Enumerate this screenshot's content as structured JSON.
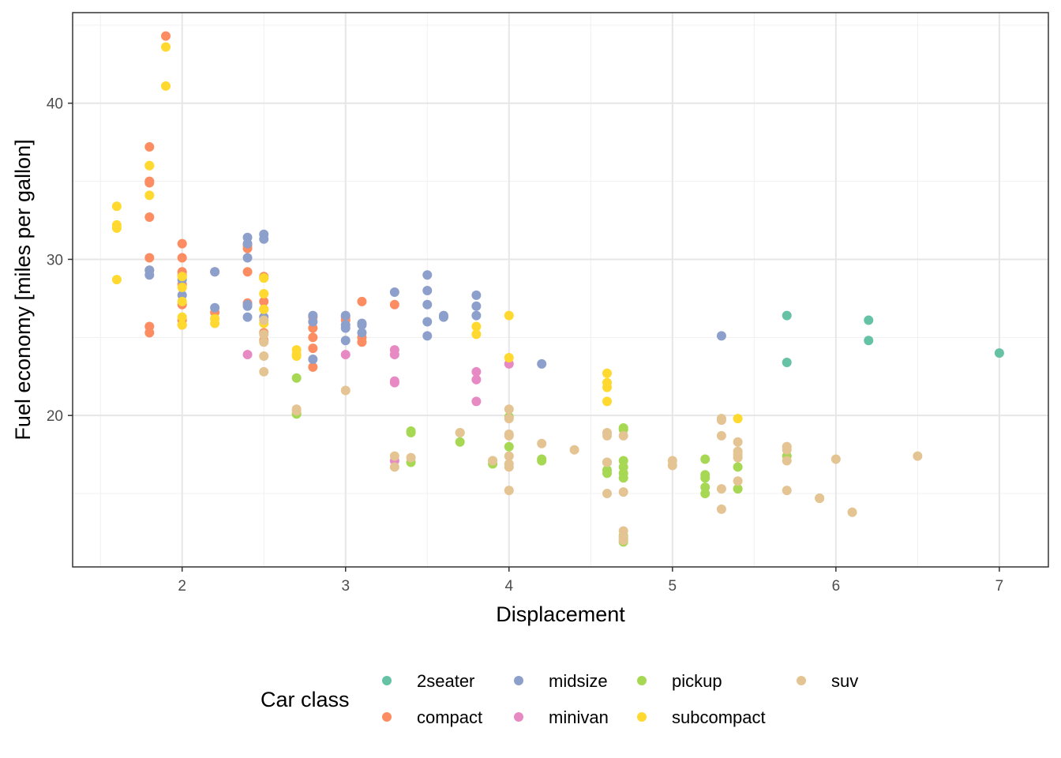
{
  "chart_data": {
    "type": "scatter",
    "title": "",
    "xlabel": "Displacement",
    "ylabel": "Fuel economy [miles per gallon]",
    "xlim": [
      1.33,
      7.3
    ],
    "ylim": [
      10.3,
      45.8
    ],
    "x_ticks": [
      2,
      3,
      4,
      5,
      6,
      7
    ],
    "y_ticks": [
      20,
      30,
      40
    ],
    "grid": true,
    "legend": {
      "title": "Car class",
      "placement": "bottom",
      "entries": [
        "2seater",
        "compact",
        "midsize",
        "minivan",
        "pickup",
        "subcompact",
        "suv"
      ]
    },
    "series": [
      {
        "name": "2seater",
        "color": "#66c2a5",
        "points": [
          [
            5.7,
            26.4
          ],
          [
            5.7,
            23.4
          ],
          [
            6.2,
            26.1
          ],
          [
            6.2,
            24.8
          ],
          [
            7.0,
            24.0
          ]
        ]
      },
      {
        "name": "compact",
        "color": "#fc8d62",
        "points": [
          [
            1.8,
            37.2
          ],
          [
            1.8,
            35.0
          ],
          [
            1.8,
            34.9
          ],
          [
            1.9,
            44.3
          ],
          [
            1.8,
            32.7
          ],
          [
            1.8,
            30.1
          ],
          [
            1.8,
            29.3
          ],
          [
            1.8,
            25.3
          ],
          [
            1.8,
            25.7
          ],
          [
            2.0,
            29.2
          ],
          [
            2.0,
            29.0
          ],
          [
            2.0,
            30.1
          ],
          [
            2.0,
            27.1
          ],
          [
            2.0,
            26.1
          ],
          [
            2.0,
            25.8
          ],
          [
            2.0,
            28.4
          ],
          [
            2.0,
            31.0
          ],
          [
            2.2,
            29.2
          ],
          [
            2.2,
            26.6
          ],
          [
            2.4,
            30.9
          ],
          [
            2.4,
            30.7
          ],
          [
            2.4,
            29.2
          ],
          [
            2.4,
            27.2
          ],
          [
            2.5,
            28.9
          ],
          [
            2.5,
            27.3
          ],
          [
            2.5,
            26.8
          ],
          [
            2.5,
            25.3
          ],
          [
            2.5,
            24.8
          ],
          [
            2.8,
            25.6
          ],
          [
            2.8,
            25.0
          ],
          [
            2.8,
            24.3
          ],
          [
            2.8,
            23.1
          ],
          [
            2.8,
            26.3
          ],
          [
            3.0,
            26.3
          ],
          [
            3.0,
            26.1
          ],
          [
            3.1,
            27.3
          ],
          [
            3.1,
            25.0
          ],
          [
            3.1,
            24.7
          ],
          [
            3.3,
            27.1
          ]
        ]
      },
      {
        "name": "midsize",
        "color": "#8da0cb",
        "points": [
          [
            1.8,
            29.0
          ],
          [
            1.8,
            29.3
          ],
          [
            2.0,
            28.7
          ],
          [
            2.0,
            27.7
          ],
          [
            2.2,
            29.2
          ],
          [
            2.2,
            26.9
          ],
          [
            2.4,
            31.4
          ],
          [
            2.4,
            31.0
          ],
          [
            2.4,
            30.1
          ],
          [
            2.4,
            27.1
          ],
          [
            2.4,
            27.0
          ],
          [
            2.5,
            31.6
          ],
          [
            2.5,
            31.3
          ],
          [
            2.5,
            26.3
          ],
          [
            2.4,
            26.3
          ],
          [
            2.8,
            26.4
          ],
          [
            2.8,
            26.0
          ],
          [
            2.8,
            23.6
          ],
          [
            3.0,
            26.4
          ],
          [
            3.0,
            25.8
          ],
          [
            3.0,
            25.6
          ],
          [
            3.0,
            24.8
          ],
          [
            3.1,
            25.9
          ],
          [
            3.1,
            25.8
          ],
          [
            3.1,
            25.3
          ],
          [
            3.3,
            27.9
          ],
          [
            3.5,
            29.0
          ],
          [
            3.5,
            26.0
          ],
          [
            3.5,
            25.1
          ],
          [
            3.5,
            28.0
          ],
          [
            3.5,
            27.1
          ],
          [
            3.6,
            26.4
          ],
          [
            3.6,
            26.3
          ],
          [
            3.8,
            27.7
          ],
          [
            3.8,
            26.4
          ],
          [
            3.8,
            27.0
          ],
          [
            4.2,
            23.3
          ],
          [
            5.3,
            25.1
          ]
        ]
      },
      {
        "name": "minivan",
        "color": "#e78ac3",
        "points": [
          [
            2.4,
            23.9
          ],
          [
            3.0,
            23.9
          ],
          [
            3.3,
            24.2
          ],
          [
            3.3,
            23.9
          ],
          [
            3.3,
            22.2
          ],
          [
            3.3,
            22.1
          ],
          [
            3.3,
            17.1
          ],
          [
            3.8,
            22.8
          ],
          [
            3.8,
            22.3
          ],
          [
            3.8,
            20.9
          ],
          [
            4.0,
            23.3
          ]
        ]
      },
      {
        "name": "pickup",
        "color": "#a6d854",
        "points": [
          [
            2.7,
            22.4
          ],
          [
            2.7,
            20.1
          ],
          [
            2.7,
            20.1
          ],
          [
            3.4,
            18.9
          ],
          [
            3.4,
            19.0
          ],
          [
            3.4,
            17.0
          ],
          [
            3.7,
            18.9
          ],
          [
            3.7,
            18.3
          ],
          [
            3.9,
            16.9
          ],
          [
            3.9,
            17.1
          ],
          [
            4.0,
            19.9
          ],
          [
            4.0,
            18.0
          ],
          [
            4.2,
            17.2
          ],
          [
            4.2,
            17.1
          ],
          [
            4.6,
            16.3
          ],
          [
            4.6,
            16.5
          ],
          [
            4.6,
            17.0
          ],
          [
            4.7,
            19.2
          ],
          [
            4.7,
            19.1
          ],
          [
            4.7,
            17.1
          ],
          [
            4.7,
            16.7
          ],
          [
            4.7,
            16.3
          ],
          [
            4.7,
            16.0
          ],
          [
            4.7,
            12.1
          ],
          [
            4.7,
            11.9
          ],
          [
            4.7,
            12.3
          ],
          [
            5.2,
            17.2
          ],
          [
            5.2,
            16.2
          ],
          [
            5.2,
            16.0
          ],
          [
            5.2,
            15.0
          ],
          [
            5.2,
            15.4
          ],
          [
            5.4,
            16.7
          ],
          [
            5.4,
            15.3
          ],
          [
            5.7,
            17.4
          ],
          [
            5.9,
            14.7
          ]
        ]
      },
      {
        "name": "subcompact",
        "color": "#ffd92f",
        "points": [
          [
            1.6,
            32.0
          ],
          [
            1.6,
            32.2
          ],
          [
            1.6,
            33.4
          ],
          [
            1.6,
            28.7
          ],
          [
            1.8,
            36.0
          ],
          [
            1.8,
            36.0
          ],
          [
            1.8,
            34.1
          ],
          [
            1.9,
            43.6
          ],
          [
            1.9,
            41.1
          ],
          [
            2.0,
            28.9
          ],
          [
            2.0,
            28.2
          ],
          [
            2.0,
            27.3
          ],
          [
            2.0,
            26.3
          ],
          [
            2.0,
            25.8
          ],
          [
            2.2,
            26.2
          ],
          [
            2.2,
            25.9
          ],
          [
            2.5,
            28.8
          ],
          [
            2.5,
            28.8
          ],
          [
            2.5,
            27.8
          ],
          [
            2.5,
            26.8
          ],
          [
            2.5,
            25.9
          ],
          [
            2.7,
            24.2
          ],
          [
            2.7,
            23.9
          ],
          [
            2.7,
            23.8
          ],
          [
            3.8,
            25.2
          ],
          [
            3.8,
            25.7
          ],
          [
            4.0,
            26.4
          ],
          [
            4.0,
            23.7
          ],
          [
            4.6,
            22.7
          ],
          [
            4.6,
            22.1
          ],
          [
            4.6,
            21.8
          ],
          [
            4.6,
            20.9
          ],
          [
            5.4,
            19.8
          ]
        ]
      },
      {
        "name": "suv",
        "color": "#e5c494",
        "points": [
          [
            2.5,
            26.1
          ],
          [
            2.5,
            25.2
          ],
          [
            2.5,
            24.7
          ],
          [
            2.5,
            23.8
          ],
          [
            2.5,
            22.8
          ],
          [
            2.7,
            20.4
          ],
          [
            2.7,
            20.3
          ],
          [
            3.0,
            21.6
          ],
          [
            3.3,
            17.4
          ],
          [
            3.3,
            16.7
          ],
          [
            3.4,
            17.3
          ],
          [
            3.7,
            18.9
          ],
          [
            3.9,
            17.1
          ],
          [
            4.0,
            20.4
          ],
          [
            4.0,
            18.8
          ],
          [
            4.0,
            18.7
          ],
          [
            4.0,
            17.4
          ],
          [
            4.0,
            16.9
          ],
          [
            4.0,
            16.7
          ],
          [
            4.0,
            15.2
          ],
          [
            4.0,
            19.8
          ],
          [
            4.2,
            18.2
          ],
          [
            4.4,
            17.8
          ],
          [
            4.6,
            18.7
          ],
          [
            4.6,
            18.9
          ],
          [
            4.6,
            17.0
          ],
          [
            4.6,
            15.0
          ],
          [
            4.7,
            18.7
          ],
          [
            4.7,
            15.1
          ],
          [
            4.7,
            12.0
          ],
          [
            4.7,
            12.2
          ],
          [
            4.7,
            12.6
          ],
          [
            5.0,
            17.1
          ],
          [
            5.0,
            16.8
          ],
          [
            5.3,
            19.7
          ],
          [
            5.3,
            18.7
          ],
          [
            5.3,
            15.3
          ],
          [
            5.3,
            14.0
          ],
          [
            5.3,
            19.8
          ],
          [
            5.4,
            17.3
          ],
          [
            5.4,
            17.5
          ],
          [
            5.4,
            15.8
          ],
          [
            5.4,
            18.3
          ],
          [
            5.4,
            17.7
          ],
          [
            5.7,
            18.0
          ],
          [
            5.7,
            17.8
          ],
          [
            5.7,
            18.0
          ],
          [
            5.7,
            17.1
          ],
          [
            5.7,
            15.2
          ],
          [
            5.9,
            14.7
          ],
          [
            6.0,
            17.2
          ],
          [
            6.1,
            13.8
          ],
          [
            6.5,
            17.4
          ]
        ]
      }
    ]
  }
}
